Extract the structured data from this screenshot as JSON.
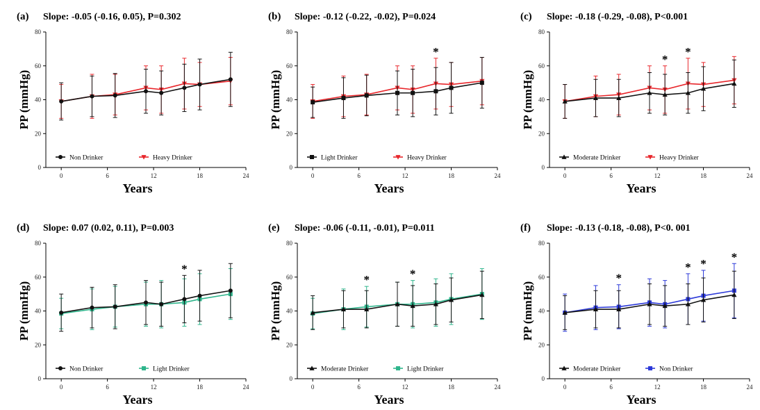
{
  "colors": {
    "black": "#111111",
    "red": "#e8262b",
    "green": "#2fb58c",
    "blue": "#2c39d8"
  },
  "chart_data": [
    {
      "type": "line",
      "panel": "(a)",
      "title": "Slope: -0.05 (-0.16, 0.05), P=0.302",
      "xlabel": "Years",
      "ylabel": "PP (mmHg)",
      "xlim": [
        -2,
        24
      ],
      "ylim": [
        0,
        80
      ],
      "xticks": [
        0,
        6,
        12,
        18,
        24
      ],
      "yticks": [
        0,
        20,
        40,
        60,
        80
      ],
      "legend_position": "bottom-left",
      "significant_x": [],
      "series": [
        {
          "name": "Non Drinker",
          "color": "black",
          "marker": "circle",
          "x": [
            0,
            4,
            7,
            11,
            13,
            16,
            18,
            22
          ],
          "values": [
            39,
            42,
            42.5,
            45,
            44,
            47,
            49,
            52
          ],
          "err": [
            11,
            12,
            13,
            13,
            13,
            14,
            15,
            16
          ]
        },
        {
          "name": "Heavy Drinker",
          "color": "red",
          "marker": "triangle-down",
          "x": [
            0,
            4,
            7,
            11,
            13,
            16,
            18,
            22
          ],
          "values": [
            39,
            42,
            43,
            47,
            46,
            49.5,
            49,
            51
          ],
          "err": [
            10,
            13,
            12,
            13,
            14,
            15,
            13,
            14
          ]
        }
      ]
    },
    {
      "type": "line",
      "panel": "(b)",
      "title": "Slope: -0.12 (-0.22, -0.02), P=0.024",
      "xlabel": "Years",
      "ylabel": "PP (mmHg)",
      "xlim": [
        -2,
        24
      ],
      "ylim": [
        0,
        80
      ],
      "xticks": [
        0,
        6,
        12,
        18,
        24
      ],
      "yticks": [
        0,
        20,
        40,
        60,
        80
      ],
      "legend_position": "bottom-left",
      "significant_x": [
        16
      ],
      "series": [
        {
          "name": "Light Drinker",
          "color": "black",
          "marker": "square",
          "x": [
            0,
            4,
            7,
            11,
            13,
            16,
            18,
            22
          ],
          "values": [
            38.5,
            41,
            42.5,
            44,
            44,
            45,
            47,
            50
          ],
          "err": [
            9,
            12,
            12,
            13,
            14,
            14,
            15,
            15
          ]
        },
        {
          "name": "Heavy Drinker",
          "color": "red",
          "marker": "triangle-down",
          "x": [
            0,
            4,
            7,
            11,
            13,
            16,
            18,
            22
          ],
          "values": [
            39,
            42,
            43,
            47,
            46,
            49.5,
            49,
            51
          ],
          "err": [
            10,
            12,
            12,
            13,
            14,
            15,
            13,
            14
          ]
        }
      ]
    },
    {
      "type": "line",
      "panel": "(c)",
      "title": "Slope: -0.18 (-0.29, -0.08), P<0.001",
      "xlabel": "Years",
      "ylabel": "PP (mmHg)",
      "xlim": [
        -2,
        24
      ],
      "ylim": [
        0,
        80
      ],
      "xticks": [
        0,
        6,
        12,
        18,
        24
      ],
      "yticks": [
        0,
        20,
        40,
        60,
        80
      ],
      "legend_position": "bottom-left",
      "significant_x": [
        13,
        16
      ],
      "series": [
        {
          "name": "Moderate Drinker",
          "color": "black",
          "marker": "triangle-up",
          "x": [
            0,
            4,
            7,
            11,
            13,
            16,
            18,
            22
          ],
          "values": [
            39,
            41,
            41,
            44,
            43,
            44,
            46.5,
            49.5
          ],
          "err": [
            10,
            11,
            11,
            12,
            12,
            12,
            13,
            14
          ]
        },
        {
          "name": "Heavy Drinker",
          "color": "red",
          "marker": "triangle-down",
          "x": [
            0,
            4,
            7,
            11,
            13,
            16,
            18,
            22
          ],
          "values": [
            39,
            42,
            43,
            47,
            46,
            49.5,
            49,
            51.5
          ],
          "err": [
            10,
            12,
            12,
            13,
            14,
            15,
            13,
            14
          ]
        }
      ]
    },
    {
      "type": "line",
      "panel": "(d)",
      "title": "Slope: 0.07 (0.02, 0.11), P=0.003",
      "xlabel": "Years",
      "ylabel": "PP (mmHg)",
      "xlim": [
        -2,
        24
      ],
      "ylim": [
        0,
        80
      ],
      "xticks": [
        0,
        6,
        12,
        18,
        24
      ],
      "yticks": [
        0,
        20,
        40,
        60,
        80
      ],
      "legend_position": "bottom-left",
      "significant_x": [
        16
      ],
      "series": [
        {
          "name": "Non Drinker",
          "color": "black",
          "marker": "circle",
          "x": [
            0,
            4,
            7,
            11,
            13,
            16,
            18,
            22
          ],
          "values": [
            39,
            42,
            42.5,
            45,
            44,
            47,
            49,
            52
          ],
          "err": [
            11,
            12,
            13,
            13,
            13,
            14,
            15,
            16
          ]
        },
        {
          "name": "Light Drinker",
          "color": "green",
          "marker": "square",
          "x": [
            0,
            4,
            7,
            11,
            13,
            16,
            18,
            22
          ],
          "values": [
            38.5,
            41,
            42.5,
            44,
            44,
            45,
            47,
            50
          ],
          "err": [
            9,
            12,
            12,
            13,
            14,
            14,
            15,
            15
          ]
        }
      ]
    },
    {
      "type": "line",
      "panel": "(e)",
      "title": "Slope: -0.06 (-0.11, -0.01), P=0.011",
      "xlabel": "Years",
      "ylabel": "PP (mmHg)",
      "xlim": [
        -2,
        24
      ],
      "ylim": [
        0,
        80
      ],
      "xticks": [
        0,
        6,
        12,
        18,
        24
      ],
      "yticks": [
        0,
        20,
        40,
        60,
        80
      ],
      "legend_position": "bottom-left",
      "significant_x": [
        7,
        13
      ],
      "series": [
        {
          "name": "Moderate Drinker",
          "color": "black",
          "marker": "triangle-up",
          "x": [
            0,
            4,
            7,
            11,
            13,
            16,
            18,
            22
          ],
          "values": [
            39,
            41,
            41,
            44,
            43,
            44,
            46.5,
            49.5
          ],
          "err": [
            10,
            11,
            11,
            13,
            12,
            12,
            13,
            14
          ]
        },
        {
          "name": "Light Drinker",
          "color": "green",
          "marker": "square",
          "x": [
            0,
            4,
            7,
            11,
            13,
            16,
            18,
            22
          ],
          "values": [
            38.5,
            41,
            42.5,
            44,
            44,
            45,
            47,
            50
          ],
          "err": [
            9,
            12,
            12,
            13,
            14,
            14,
            15,
            15
          ]
        }
      ]
    },
    {
      "type": "line",
      "panel": "(f)",
      "title": "Slope: -0.13 (-0.18, -0.08), P<0. 001",
      "xlabel": "Years",
      "ylabel": "PP (mmHg)",
      "xlim": [
        -2,
        24
      ],
      "ylim": [
        0,
        80
      ],
      "xticks": [
        0,
        6,
        12,
        18,
        24
      ],
      "yticks": [
        0,
        20,
        40,
        60,
        80
      ],
      "legend_position": "bottom-left",
      "significant_x": [
        7,
        16,
        18,
        22
      ],
      "series": [
        {
          "name": "Moderate Drinker",
          "color": "black",
          "marker": "triangle-up",
          "x": [
            0,
            4,
            7,
            11,
            13,
            16,
            18,
            22
          ],
          "values": [
            39,
            41,
            41,
            44,
            43,
            44,
            46.5,
            49.5
          ],
          "err": [
            10,
            11,
            11,
            12,
            12,
            12,
            13,
            14
          ]
        },
        {
          "name": "Non Drinker",
          "color": "blue",
          "marker": "square",
          "x": [
            0,
            4,
            7,
            11,
            13,
            16,
            18,
            22
          ],
          "values": [
            39,
            42,
            42.5,
            45,
            44,
            47,
            49,
            52
          ],
          "err": [
            11,
            13,
            13,
            14,
            14,
            15,
            15,
            16
          ]
        }
      ]
    }
  ]
}
